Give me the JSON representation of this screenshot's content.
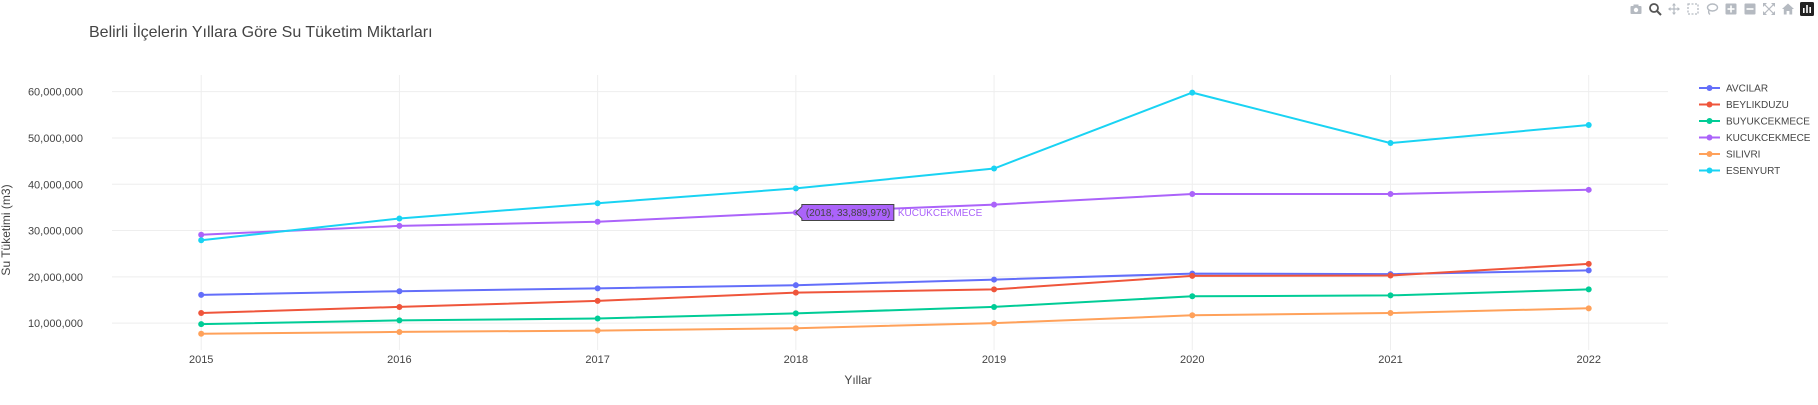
{
  "modebar": {
    "icons": [
      "camera-icon",
      "zoom-icon",
      "pan-icon",
      "box-select-icon",
      "lasso-select-icon",
      "zoom-in-icon",
      "zoom-out-icon",
      "autoscale-icon",
      "reset-axes-icon",
      "plotly-logo-icon"
    ]
  },
  "chart_data": {
    "type": "line",
    "title": "Belirli İlçelerin Yıllara Göre Su Tüketim Miktarları",
    "xlabel": "Yıllar",
    "ylabel": "Su Tüketimi (m3)",
    "x": [
      2015,
      2016,
      2017,
      2018,
      2019,
      2020,
      2021,
      2022
    ],
    "xtick_labels": [
      "2015",
      "2016",
      "2017",
      "2018",
      "2019",
      "2020",
      "2021",
      "2022"
    ],
    "yticks": [
      10000000,
      20000000,
      30000000,
      40000000,
      50000000,
      60000000
    ],
    "ytick_labels": [
      "10,000,000",
      "20,000,000",
      "30,000,000",
      "40,000,000",
      "50,000,000",
      "60,000,000"
    ],
    "xlim": [
      2014.55,
      2022.4
    ],
    "ylim": [
      4200000,
      63600000
    ],
    "grid": true,
    "legend_position": "top-right",
    "series": [
      {
        "name": "AVCILAR",
        "color": "#636efa",
        "values": [
          16100000,
          16900000,
          17500000,
          18200000,
          19400000,
          20700000,
          20600000,
          21400000
        ]
      },
      {
        "name": "BEYLIKDUZU",
        "color": "#ef553b",
        "values": [
          12200000,
          13500000,
          14800000,
          16600000,
          17300000,
          20200000,
          20300000,
          22800000
        ]
      },
      {
        "name": "BUYUKCEKMECE",
        "color": "#00cc96",
        "values": [
          9800000,
          10600000,
          11000000,
          12100000,
          13500000,
          15800000,
          16000000,
          17300000
        ]
      },
      {
        "name": "KUCUKCEKMECE",
        "color": "#ab63fa",
        "values": [
          29100000,
          31000000,
          31900000,
          33889979,
          35600000,
          37900000,
          37900000,
          38800000
        ]
      },
      {
        "name": "SILIVRI",
        "color": "#ffa15a",
        "values": [
          7700000,
          8100000,
          8400000,
          8900000,
          10000000,
          11700000,
          12200000,
          13200000
        ]
      },
      {
        "name": "ESENYURT",
        "color": "#19d3f3",
        "values": [
          27900000,
          32600000,
          35900000,
          39100000,
          43400000,
          59800000,
          48900000,
          52800000
        ]
      }
    ],
    "hover": {
      "series_index": 3,
      "point_index": 3,
      "value_text": "(2018, 33,889,979)",
      "name_text": "KUCUKCEKMECE"
    }
  }
}
